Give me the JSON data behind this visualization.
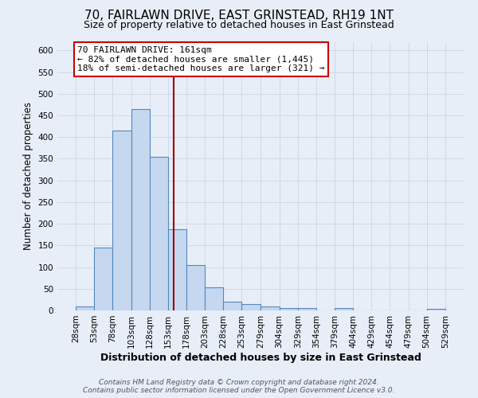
{
  "title": "70, FAIRLAWN DRIVE, EAST GRINSTEAD, RH19 1NT",
  "subtitle": "Size of property relative to detached houses in East Grinstead",
  "xlabel": "Distribution of detached houses by size in East Grinstead",
  "ylabel": "Number of detached properties",
  "bin_edges": [
    28,
    53,
    78,
    103,
    128,
    153,
    178,
    203,
    228,
    253,
    279,
    304,
    329,
    354,
    379,
    404,
    429,
    454,
    479,
    504,
    529
  ],
  "bin_counts": [
    10,
    145,
    415,
    465,
    355,
    187,
    105,
    53,
    20,
    14,
    10,
    5,
    5,
    0,
    5,
    0,
    0,
    0,
    0,
    3
  ],
  "bar_facecolor": "#c5d8f0",
  "bar_edgecolor": "#5588bb",
  "grid_color": "#d0d8e8",
  "vline_x": 161,
  "vline_color": "#990000",
  "annotation_box_text": "70 FAIRLAWN DRIVE: 161sqm\n← 82% of detached houses are smaller (1,445)\n18% of semi-detached houses are larger (321) →",
  "annotation_box_facecolor": "#ffffff",
  "annotation_box_edgecolor": "#cc0000",
  "ylim": [
    0,
    620
  ],
  "yticks": [
    0,
    50,
    100,
    150,
    200,
    250,
    300,
    350,
    400,
    450,
    500,
    550,
    600
  ],
  "footer_line1": "Contains HM Land Registry data © Crown copyright and database right 2024.",
  "footer_line2": "Contains public sector information licensed under the Open Government Licence v3.0.",
  "title_fontsize": 11,
  "subtitle_fontsize": 9,
  "xlabel_fontsize": 9,
  "ylabel_fontsize": 8.5,
  "tick_label_size": 7.5,
  "footer_fontsize": 6.5,
  "annotation_fontsize": 8,
  "background_color": "#e8eef8"
}
